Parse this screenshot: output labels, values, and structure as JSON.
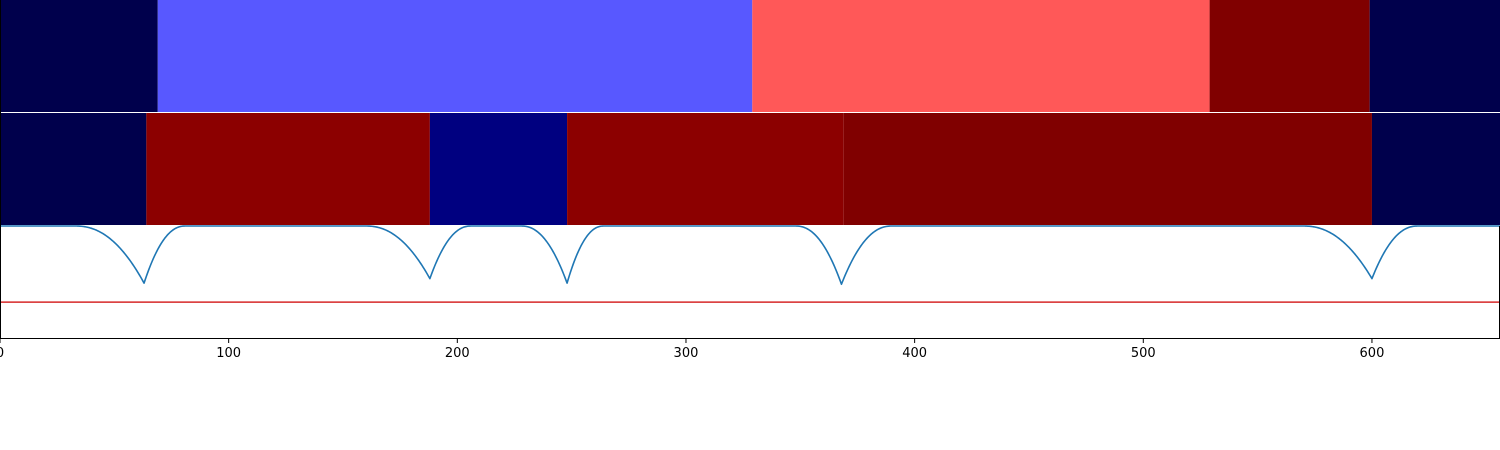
{
  "chart_data": {
    "type": "heatmap",
    "title": "",
    "xlabel": "",
    "ylabel": "",
    "xlim": [
      0,
      656
    ],
    "grid": false,
    "xticks": [
      0,
      100,
      200,
      300,
      400,
      500,
      600
    ],
    "xtick_labels": [
      "0",
      "100",
      "200",
      "300",
      "400",
      "500",
      "600"
    ],
    "segment_rows": [
      {
        "segments": [
          {
            "start": 0,
            "end": 69,
            "color": "#00004c"
          },
          {
            "start": 69,
            "end": 329,
            "color": "#5858ff"
          },
          {
            "start": 329,
            "end": 529,
            "color": "#ff5858"
          },
          {
            "start": 529,
            "end": 599,
            "color": "#800000"
          },
          {
            "start": 599,
            "end": 656,
            "color": "#00004c"
          }
        ]
      },
      {
        "segments": [
          {
            "start": 0,
            "end": 64,
            "color": "#00004c"
          },
          {
            "start": 64,
            "end": 188,
            "color": "#8c0000"
          },
          {
            "start": 188,
            "end": 248,
            "color": "#000080"
          },
          {
            "start": 248,
            "end": 369,
            "color": "#8c0000"
          },
          {
            "start": 369,
            "end": 600,
            "color": "#800000"
          },
          {
            "start": 600,
            "end": 656,
            "color": "#00004c"
          }
        ]
      }
    ],
    "line_panel": {
      "ylim": [
        0,
        1
      ],
      "threshold": 0.32,
      "threshold_color": "#d62728",
      "line_color": "#1f77b4",
      "baseline": 1.0,
      "dips": [
        {
          "x": 63,
          "depth": 0.51,
          "left": 30,
          "right": 18
        },
        {
          "x": 188,
          "depth": 0.47,
          "left": 28,
          "right": 18
        },
        {
          "x": 248,
          "depth": 0.51,
          "left": 20,
          "right": 16
        },
        {
          "x": 368,
          "depth": 0.52,
          "left": 20,
          "right": 22
        },
        {
          "x": 600,
          "depth": 0.47,
          "left": 30,
          "right": 20
        }
      ]
    }
  }
}
